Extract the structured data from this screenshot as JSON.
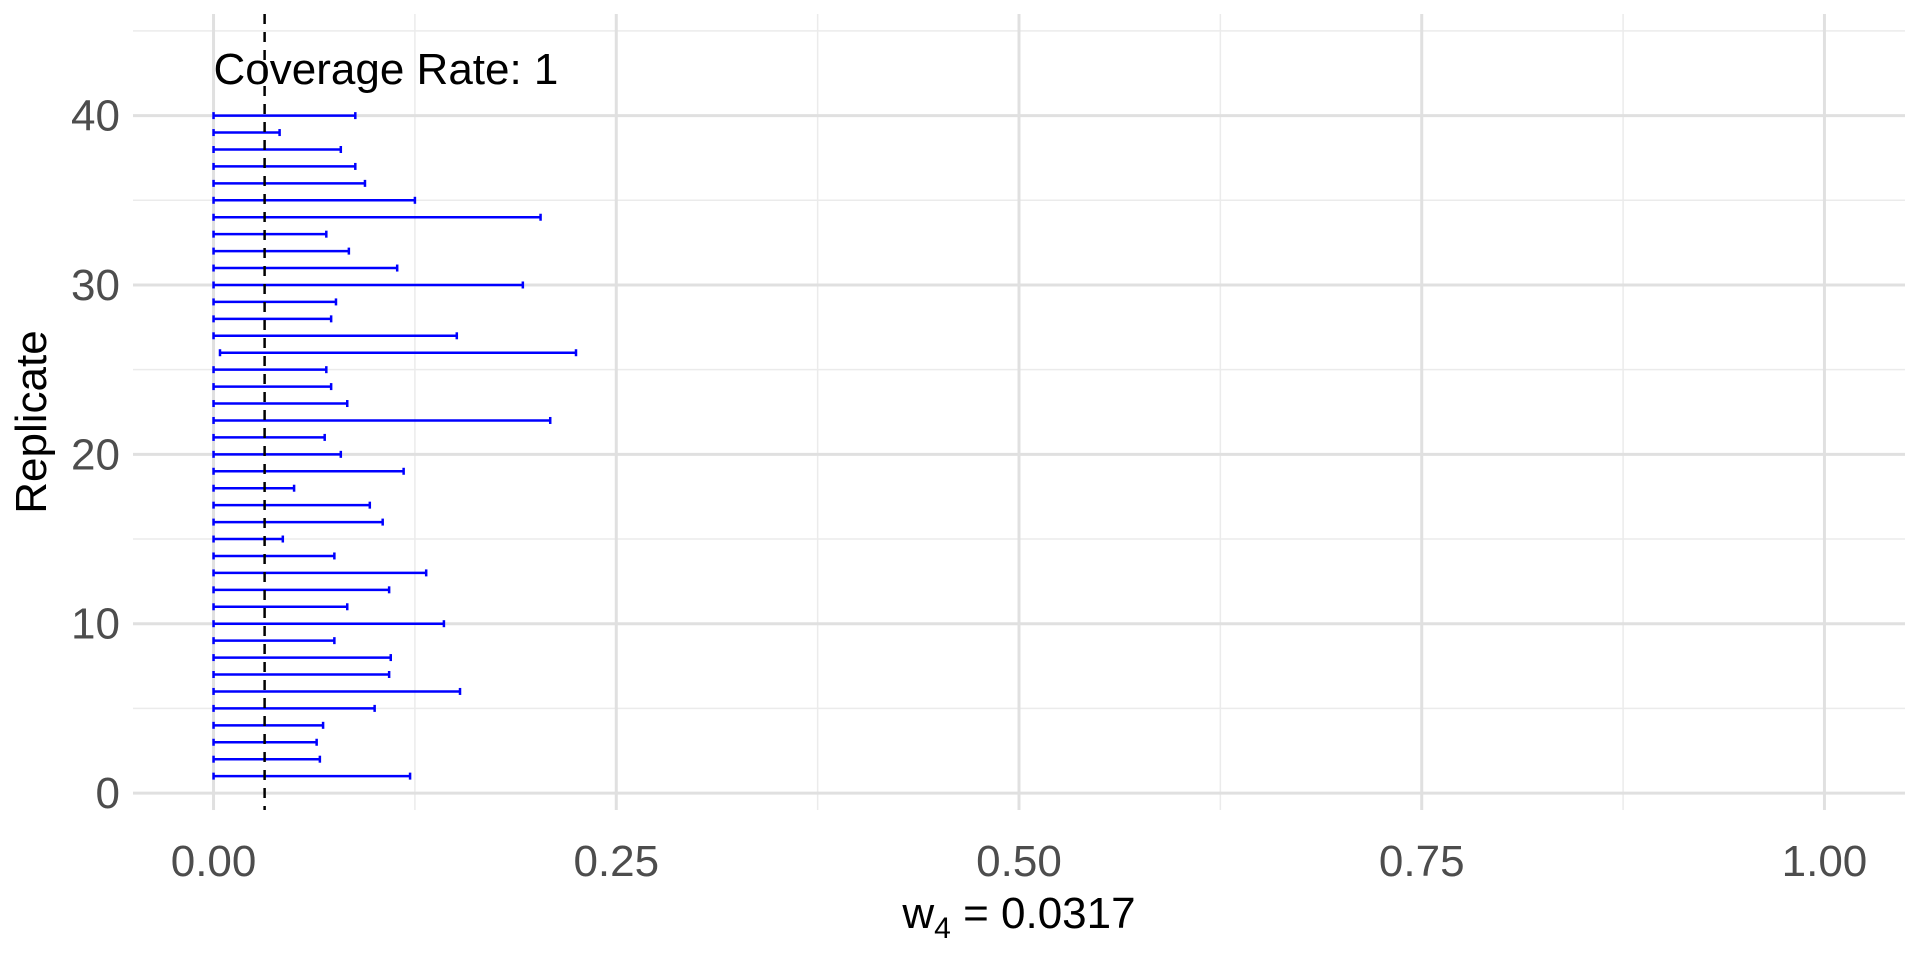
{
  "chart_data": {
    "type": "errorbar",
    "annotation": "Coverage Rate: 1",
    "xlabel": {
      "base": "w",
      "subscript": "4",
      "rest": " = 0.0317"
    },
    "ylabel": "Replicate",
    "xlim": [
      -0.05,
      1.05
    ],
    "ylim": [
      -1,
      46
    ],
    "x_ticks": [
      0.0,
      0.25,
      0.5,
      0.75,
      1.0
    ],
    "x_tick_labels": [
      "0.00",
      "0.25",
      "0.50",
      "0.75",
      "1.00"
    ],
    "y_ticks": [
      0,
      10,
      20,
      30,
      40
    ],
    "y_tick_labels": [
      "0",
      "10",
      "20",
      "30",
      "40"
    ],
    "reference_line": 0.0317,
    "reference_line_style": "dashed",
    "grid": true,
    "bar_color": "#0000ff",
    "intervals": [
      {
        "replicate": 1,
        "low": 0.0,
        "high": 0.122
      },
      {
        "replicate": 2,
        "low": 0.0,
        "high": 0.066
      },
      {
        "replicate": 3,
        "low": 0.0,
        "high": 0.064
      },
      {
        "replicate": 4,
        "low": 0.0,
        "high": 0.068
      },
      {
        "replicate": 5,
        "low": 0.0,
        "high": 0.1
      },
      {
        "replicate": 6,
        "low": 0.0,
        "high": 0.153
      },
      {
        "replicate": 7,
        "low": 0.0,
        "high": 0.109
      },
      {
        "replicate": 8,
        "low": 0.0,
        "high": 0.11
      },
      {
        "replicate": 9,
        "low": 0.0,
        "high": 0.075
      },
      {
        "replicate": 10,
        "low": 0.0,
        "high": 0.143
      },
      {
        "replicate": 11,
        "low": 0.0,
        "high": 0.083
      },
      {
        "replicate": 12,
        "low": 0.0,
        "high": 0.109
      },
      {
        "replicate": 13,
        "low": 0.0,
        "high": 0.132
      },
      {
        "replicate": 14,
        "low": 0.0,
        "high": 0.075
      },
      {
        "replicate": 15,
        "low": 0.0,
        "high": 0.043
      },
      {
        "replicate": 16,
        "low": 0.0,
        "high": 0.105
      },
      {
        "replicate": 17,
        "low": 0.0,
        "high": 0.097
      },
      {
        "replicate": 18,
        "low": 0.0,
        "high": 0.05
      },
      {
        "replicate": 19,
        "low": 0.0,
        "high": 0.118
      },
      {
        "replicate": 20,
        "low": 0.0,
        "high": 0.079
      },
      {
        "replicate": 21,
        "low": 0.0,
        "high": 0.069
      },
      {
        "replicate": 22,
        "low": 0.0,
        "high": 0.209
      },
      {
        "replicate": 23,
        "low": 0.0,
        "high": 0.083
      },
      {
        "replicate": 24,
        "low": 0.0,
        "high": 0.073
      },
      {
        "replicate": 25,
        "low": 0.0,
        "high": 0.07
      },
      {
        "replicate": 26,
        "low": 0.004,
        "high": 0.225
      },
      {
        "replicate": 27,
        "low": 0.0,
        "high": 0.151
      },
      {
        "replicate": 28,
        "low": 0.0,
        "high": 0.073
      },
      {
        "replicate": 29,
        "low": 0.0,
        "high": 0.076
      },
      {
        "replicate": 30,
        "low": 0.0,
        "high": 0.192
      },
      {
        "replicate": 31,
        "low": 0.0,
        "high": 0.114
      },
      {
        "replicate": 32,
        "low": 0.0,
        "high": 0.084
      },
      {
        "replicate": 33,
        "low": 0.0,
        "high": 0.07
      },
      {
        "replicate": 34,
        "low": 0.0,
        "high": 0.203
      },
      {
        "replicate": 35,
        "low": 0.0,
        "high": 0.125
      },
      {
        "replicate": 36,
        "low": 0.0,
        "high": 0.094
      },
      {
        "replicate": 37,
        "low": 0.0,
        "high": 0.088
      },
      {
        "replicate": 38,
        "low": 0.0,
        "high": 0.079
      },
      {
        "replicate": 39,
        "low": 0.0,
        "high": 0.041
      },
      {
        "replicate": 40,
        "low": 0.0,
        "high": 0.088
      }
    ]
  }
}
